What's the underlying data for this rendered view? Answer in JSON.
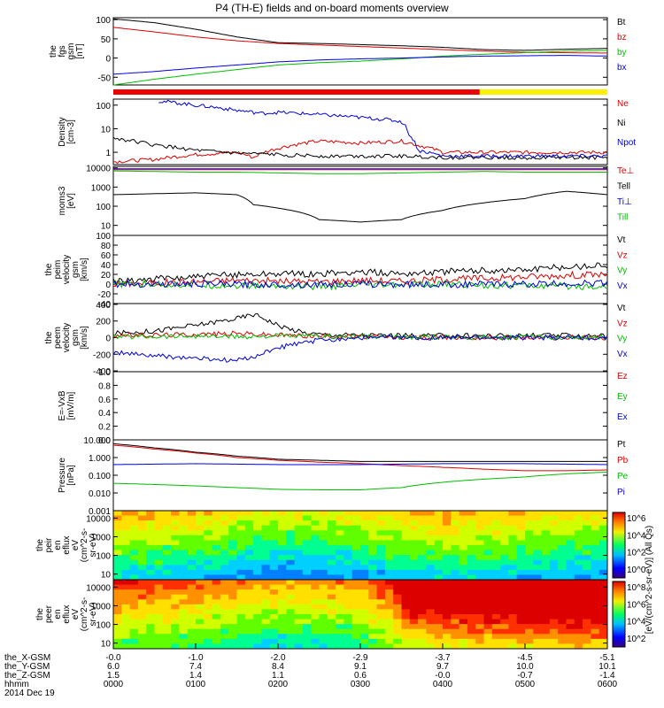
{
  "title": "P4 (TH-E) fields and on-board moments overview",
  "date_label": "2014 Dec 19",
  "colorbar_label": "[eV/(cm^2-s-sr-eV)] (All Qs)",
  "chart_data": [
    {
      "type": "line",
      "key": "bfield",
      "ylabel": [
        "the",
        "fgs",
        "gsm",
        "[nT]"
      ],
      "yticks": [
        100,
        50,
        0,
        -50
      ],
      "ylim": [
        -70,
        105
      ],
      "yscale": "linear",
      "series": [
        {
          "name": "Bt",
          "color": "#000000",
          "x": [
            0,
            0.5,
            1,
            1.5,
            2,
            2.5,
            3,
            3.5,
            4,
            4.5,
            5,
            5.5,
            6
          ],
          "y": [
            102,
            92,
            75,
            55,
            40,
            38,
            35,
            32,
            28,
            22,
            20,
            23,
            25
          ]
        },
        {
          "name": "bz",
          "color": "#dd0000",
          "x": [
            0,
            0.5,
            1,
            1.5,
            2,
            2.5,
            3,
            3.5,
            4,
            4.5,
            5,
            5.5,
            6
          ],
          "y": [
            80,
            68,
            55,
            45,
            38,
            34,
            30,
            26,
            22,
            18,
            15,
            14,
            13
          ]
        },
        {
          "name": "by",
          "color": "#00bb00",
          "x": [
            0,
            0.5,
            1,
            1.5,
            2,
            2.5,
            3,
            3.5,
            4,
            4.5,
            5,
            5.5,
            6
          ],
          "y": [
            -70,
            -55,
            -42,
            -30,
            -18,
            -12,
            -8,
            -2,
            5,
            10,
            14,
            18,
            20
          ]
        },
        {
          "name": "bx",
          "color": "#0000dd",
          "x": [
            0,
            0.5,
            1,
            1.5,
            2,
            2.5,
            3,
            3.5,
            4,
            4.5,
            5,
            5.5,
            6
          ],
          "y": [
            -42,
            -35,
            -26,
            -18,
            -10,
            -5,
            -2,
            0,
            3,
            5,
            6,
            7,
            5
          ]
        }
      ]
    },
    {
      "type": "line",
      "key": "density",
      "ylabel": [
        "Density",
        "[cm-3]"
      ],
      "yticks": [
        100,
        10,
        1
      ],
      "ylim": [
        0.3,
        180
      ],
      "yscale": "log",
      "series": [
        {
          "name": "Ne",
          "color": "#dd0000",
          "x": [
            0,
            0.5,
            1,
            1.5,
            1.7,
            2,
            2.5,
            3,
            3.5,
            3.7,
            4,
            4.5,
            5,
            5.5,
            6
          ],
          "y": [
            0.4,
            0.5,
            0.8,
            1.0,
            0.6,
            1.5,
            3.0,
            2.5,
            3.0,
            2.0,
            1.0,
            1.0,
            1.0,
            1.0,
            1.0
          ]
        },
        {
          "name": "Ni",
          "color": "#000000",
          "x": [
            0,
            0.5,
            1,
            1.5,
            2,
            2.5,
            3,
            3.5,
            4,
            4.5,
            5,
            5.5,
            6
          ],
          "y": [
            4.0,
            2.0,
            1.2,
            0.9,
            0.8,
            0.7,
            0.7,
            0.7,
            0.6,
            0.6,
            0.6,
            0.6,
            0.6
          ]
        },
        {
          "name": "Npot",
          "color": "#0000dd",
          "x": [
            0.55,
            1,
            1.5,
            1.8,
            2,
            2.5,
            3,
            3.3,
            3.5,
            3.6,
            3.7,
            4,
            4.5,
            5,
            5.5,
            6
          ],
          "y": [
            150,
            100,
            60,
            45,
            50,
            40,
            30,
            25,
            20,
            5,
            1.2,
            0.7,
            0.7,
            0.7,
            0.7,
            0.7
          ]
        }
      ]
    },
    {
      "type": "line",
      "key": "temp",
      "ylabel": [
        "moms3",
        "[eV]"
      ],
      "yticks": [
        10000,
        1000,
        100,
        10
      ],
      "ylim": [
        3,
        12000
      ],
      "yscale": "log",
      "series": [
        {
          "name": "Te⊥",
          "color": "#dd0000",
          "x": [
            0,
            0.5,
            1,
            1.5,
            2,
            2.5,
            3,
            3.5,
            4,
            4.5,
            5,
            5.5,
            6
          ],
          "y": [
            8000,
            8000,
            8000,
            8000,
            8000,
            8000,
            8000,
            8000,
            8000,
            8000,
            8000,
            8000,
            8000
          ]
        },
        {
          "name": "Tell",
          "color": "#000000",
          "x": [
            0,
            0.5,
            1,
            1.5,
            1.7,
            2,
            2.5,
            3,
            3.5,
            4,
            4.5,
            5,
            5.5,
            6
          ],
          "y": [
            400,
            450,
            500,
            400,
            120,
            80,
            20,
            15,
            20,
            60,
            150,
            250,
            600,
            400
          ]
        },
        {
          "name": "Ti⊥",
          "color": "#0000dd",
          "x": [
            0,
            1,
            2,
            3,
            4,
            4.45,
            5,
            6
          ],
          "y": [
            9000,
            9000,
            9000,
            9000,
            9000,
            9000,
            9000,
            9000
          ]
        },
        {
          "name": "Till",
          "color": "#00bb00",
          "x": [
            0,
            0.5,
            1,
            1.5,
            2,
            2.5,
            3,
            3.5,
            4,
            4.5,
            5,
            5.5,
            6
          ],
          "y": [
            7000,
            6500,
            6000,
            6000,
            5500,
            5000,
            5000,
            5500,
            6000,
            6500,
            6000,
            6000,
            6000
          ]
        }
      ]
    },
    {
      "type": "line",
      "key": "peim_vel",
      "ylabel": [
        "the",
        "peim",
        "velocity",
        "gsm",
        "[km/s]"
      ],
      "yticks": [
        100,
        80,
        60,
        40,
        20,
        0,
        -20,
        -40
      ],
      "ylim": [
        -40,
        100
      ],
      "yscale": "linear",
      "series": [
        {
          "name": "Vt",
          "color": "#000000",
          "x": [
            0,
            0.5,
            1,
            1.5,
            2,
            2.5,
            3,
            3.5,
            4,
            4.5,
            5,
            5.5,
            6
          ],
          "y": [
            5,
            10,
            15,
            20,
            22,
            20,
            25,
            22,
            25,
            28,
            30,
            35,
            40
          ]
        },
        {
          "name": "Vz",
          "color": "#dd0000",
          "x": [
            0,
            0.5,
            1,
            1.5,
            2,
            2.5,
            3,
            3.5,
            4,
            4.5,
            5,
            5.5,
            6
          ],
          "y": [
            0,
            2,
            5,
            8,
            6,
            5,
            8,
            6,
            10,
            12,
            15,
            18,
            20
          ]
        },
        {
          "name": "Vy",
          "color": "#00bb00",
          "x": [
            0,
            0.5,
            1,
            1.5,
            2,
            2.5,
            3,
            3.5,
            4,
            4.5,
            5,
            5.5,
            6
          ],
          "y": [
            0,
            0,
            -2,
            -3,
            -4,
            -5,
            -3,
            -2,
            0,
            -2,
            -3,
            -4,
            -5
          ]
        },
        {
          "name": "Vx",
          "color": "#0000dd",
          "x": [
            0,
            1,
            2,
            3,
            4,
            5,
            6
          ],
          "y": [
            0,
            0,
            -1,
            0,
            -1,
            0,
            2
          ]
        }
      ]
    },
    {
      "type": "line",
      "key": "peem_vel",
      "ylabel": [
        "the",
        "peem",
        "velocity",
        "gsm",
        "[km/s]"
      ],
      "yticks": [
        400,
        200,
        0,
        -200,
        -400
      ],
      "ylim": [
        -410,
        410
      ],
      "yscale": "linear",
      "series": [
        {
          "name": "Vt",
          "color": "#000000",
          "x": [
            0,
            0.5,
            1,
            1.5,
            1.7,
            1.8,
            2,
            2.3,
            2.5,
            3,
            3.5,
            4,
            4.5,
            5,
            5.5,
            6
          ],
          "y": [
            50,
            80,
            150,
            230,
            280,
            250,
            150,
            60,
            40,
            30,
            25,
            25,
            25,
            25,
            25,
            25
          ]
        },
        {
          "name": "Vz",
          "color": "#dd0000",
          "x": [
            0,
            0.5,
            1,
            1.5,
            2,
            2.5,
            3,
            3.5,
            4,
            4.5,
            5,
            5.5,
            6
          ],
          "y": [
            30,
            30,
            40,
            50,
            30,
            20,
            10,
            0,
            0,
            0,
            0,
            0,
            0
          ]
        },
        {
          "name": "Vy",
          "color": "#00bb00",
          "x": [
            0,
            0.5,
            1,
            1.5,
            2,
            2.5,
            3,
            3.5,
            4,
            4.5,
            5,
            5.5,
            6
          ],
          "y": [
            10,
            15,
            20,
            10,
            20,
            15,
            10,
            5,
            5,
            5,
            5,
            5,
            5
          ]
        },
        {
          "name": "Vx",
          "color": "#0000dd",
          "x": [
            0,
            0.5,
            1,
            1.5,
            1.8,
            2,
            2.5,
            3,
            3.5,
            4,
            4.5,
            5,
            5.5,
            6
          ],
          "y": [
            -180,
            -220,
            -250,
            -280,
            -200,
            -120,
            -30,
            0,
            0,
            0,
            0,
            0,
            0,
            0
          ]
        }
      ]
    },
    {
      "type": "line",
      "key": "efield",
      "ylabel": [
        "E=-VxB",
        "[mV/m]"
      ],
      "yticks": [
        "1.0",
        "0.8",
        "0.6",
        "0.4",
        "0.2",
        "0.0"
      ],
      "ylim": [
        0,
        1
      ],
      "yscale": "linear",
      "series": [
        {
          "name": "Ez",
          "color": "#dd0000",
          "x": [],
          "y": []
        },
        {
          "name": "Ey",
          "color": "#00bb00",
          "x": [],
          "y": []
        },
        {
          "name": "Ex",
          "color": "#0000dd",
          "x": [],
          "y": []
        }
      ]
    },
    {
      "type": "line",
      "key": "pressure",
      "ylabel": [
        "Pressure",
        "[nPa]"
      ],
      "yticks": [
        "10.000",
        "1.000",
        "0.100",
        "0.010",
        "0.001"
      ],
      "ylim": [
        0.001,
        10
      ],
      "yscale": "log",
      "series": [
        {
          "name": "Pt",
          "color": "#000000",
          "x": [
            0,
            0.5,
            1,
            1.5,
            2,
            2.5,
            3,
            3.5,
            4,
            4.5,
            5,
            5.5,
            6
          ],
          "y": [
            6,
            3.5,
            2.0,
            1.2,
            0.8,
            0.7,
            0.6,
            0.6,
            0.6,
            0.6,
            0.6,
            0.6,
            0.6
          ]
        },
        {
          "name": "Pb",
          "color": "#dd0000",
          "x": [
            0,
            0.5,
            1,
            1.5,
            2,
            2.5,
            3,
            3.5,
            4,
            4.5,
            5,
            5.5,
            6
          ],
          "y": [
            5,
            3.0,
            1.8,
            1.0,
            0.7,
            0.55,
            0.45,
            0.35,
            0.28,
            0.22,
            0.18,
            0.18,
            0.2
          ]
        },
        {
          "name": "Pe",
          "color": "#00bb00",
          "x": [
            0,
            0.5,
            1,
            1.5,
            2,
            2.5,
            3,
            3.5,
            4,
            4.5,
            5,
            5.5,
            6
          ],
          "y": [
            0.035,
            0.03,
            0.025,
            0.02,
            0.016,
            0.015,
            0.015,
            0.02,
            0.04,
            0.06,
            0.08,
            0.12,
            0.15
          ]
        },
        {
          "name": "Pi",
          "color": "#0000dd",
          "x": [
            0,
            1,
            2,
            3,
            4,
            5,
            6
          ],
          "y": [
            0.4,
            0.45,
            0.4,
            0.4,
            0.45,
            0.45,
            0.4
          ]
        }
      ]
    },
    {
      "type": "heatmap",
      "key": "peir",
      "ylabel": [
        "the",
        "peir",
        "en",
        "eflux",
        "eV",
        "(cm^2-s-",
        "sr-eV)"
      ],
      "yticks": [
        10000,
        1000,
        100,
        10
      ],
      "ylim": [
        5,
        25000
      ],
      "yscale": "log",
      "colorbar_ticks": [
        "10^6",
        "10^4",
        "10^2",
        "10^0"
      ],
      "level_profile": {
        "x": [
          0,
          1,
          2,
          3,
          4,
          5,
          6
        ],
        "level": [
          0.55,
          0.5,
          0.4,
          0.45,
          0.55,
          0.5,
          0.45
        ]
      }
    },
    {
      "type": "heatmap",
      "key": "peer",
      "ylabel": [
        "the",
        "peer",
        "en",
        "eflux",
        "eV",
        "(cm^2-s-",
        "sr-eV)"
      ],
      "yticks": [
        10000,
        1000,
        100,
        10
      ],
      "ylim": [
        5,
        25000
      ],
      "yscale": "log",
      "colorbar_ticks": [
        "10^8",
        "10^6",
        "10^4",
        "10^2"
      ],
      "level_profile": {
        "x": [
          0,
          1,
          2,
          3,
          3.5,
          4,
          5,
          6
        ],
        "level": [
          0.7,
          0.65,
          0.55,
          0.6,
          0.8,
          0.85,
          0.9,
          0.95
        ]
      }
    }
  ],
  "time_axis": {
    "rows": [
      {
        "label": "the_X-GSM",
        "values": [
          "-0.0",
          "-1.0",
          "-2.0",
          "-2.9",
          "-3.7",
          "-4.5",
          "-5.1"
        ]
      },
      {
        "label": "the_Y-GSM",
        "values": [
          "6.0",
          "7.4",
          "8.4",
          "9.1",
          "9.7",
          "10.0",
          "10.1"
        ]
      },
      {
        "label": "the_Z-GSM",
        "values": [
          "1.5",
          "1.4",
          "1.1",
          "0.6",
          "-0.0",
          "-0.7",
          "-1.4"
        ]
      },
      {
        "label": "hhmm",
        "values": [
          "0000",
          "0100",
          "0200",
          "0300",
          "0400",
          "0500",
          "0600"
        ]
      }
    ]
  }
}
